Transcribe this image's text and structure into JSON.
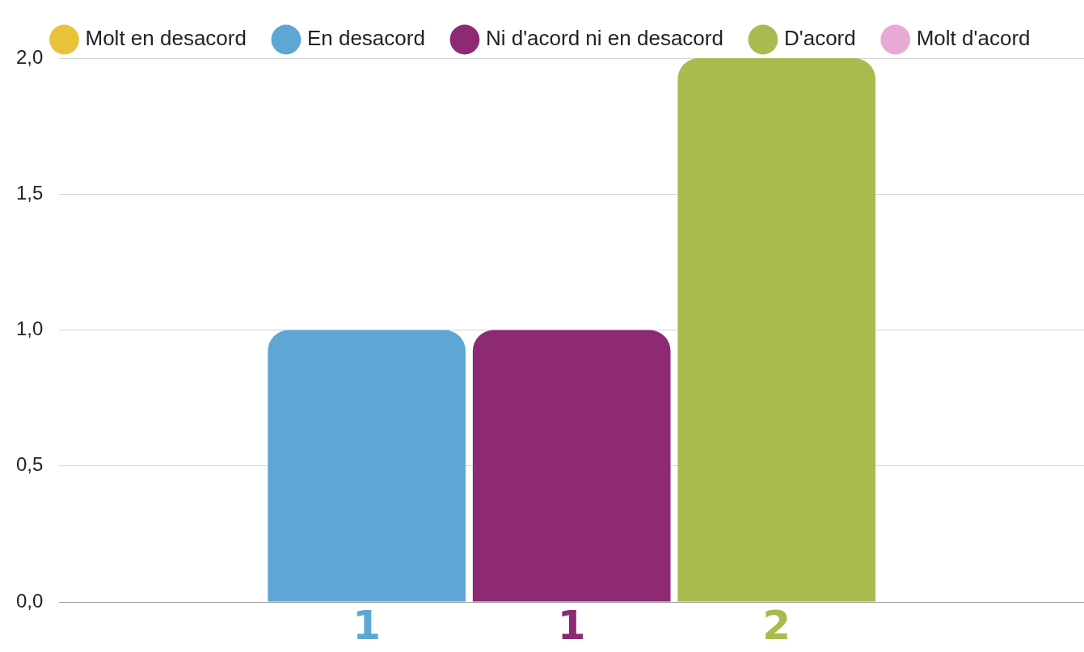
{
  "chart_data": {
    "type": "bar",
    "categories": [
      null
    ],
    "series": [
      {
        "name": "Molt en desacord",
        "color": "#e8c33a",
        "values": [
          0
        ],
        "value_labels": [
          null
        ]
      },
      {
        "name": "En desacord",
        "color": "#5ea7d4",
        "values": [
          1
        ],
        "value_labels": [
          "1"
        ]
      },
      {
        "name": "Ni d'acord ni en desacord",
        "color": "#8e2a73",
        "values": [
          1
        ],
        "value_labels": [
          "1"
        ]
      },
      {
        "name": "D'acord",
        "color": "#a9bb4e",
        "values": [
          2
        ],
        "value_labels": [
          "2"
        ]
      },
      {
        "name": "Molt d'acord",
        "color": "#e8a9d5",
        "values": [
          0
        ],
        "value_labels": [
          null
        ]
      }
    ],
    "ylim": [
      0,
      2
    ],
    "yticks": [
      {
        "value": 0,
        "label": "0,0"
      },
      {
        "value": 0.5,
        "label": "0,5"
      },
      {
        "value": 1,
        "label": "1,0"
      },
      {
        "value": 1.5,
        "label": "1,5"
      },
      {
        "value": 2,
        "label": "2,0"
      }
    ],
    "grid": "y",
    "legend": "top",
    "marker": "circle"
  }
}
